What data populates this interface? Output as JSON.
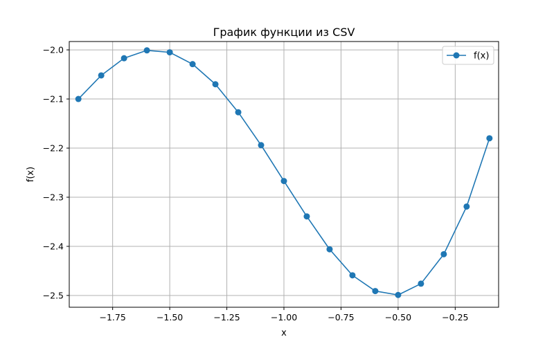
{
  "chart_data": {
    "type": "line",
    "title": "График функции из CSV",
    "xlabel": "x",
    "ylabel": "f(x)",
    "xlim": [
      -1.94,
      -0.06
    ],
    "ylim": [
      -2.524,
      -1.983
    ],
    "grid": true,
    "legend_position": "top-right",
    "x_ticks": [
      -1.75,
      -1.5,
      -1.25,
      -1.0,
      -0.75,
      -0.5,
      -0.25
    ],
    "x_tick_labels": [
      "−1.75",
      "−1.50",
      "−1.25",
      "−1.00",
      "−0.75",
      "−0.50",
      "−0.25"
    ],
    "y_ticks": [
      -2.0,
      -2.1,
      -2.2,
      -2.3,
      -2.4,
      -2.5
    ],
    "y_tick_labels": [
      "−2.0",
      "−2.1",
      "−2.2",
      "−2.3",
      "−2.4",
      "−2.5"
    ],
    "colors": {
      "series": "#1f77b4",
      "grid": "#b0b0b0",
      "axes": "#000000"
    },
    "series": [
      {
        "name": "f(x)",
        "marker": "circle",
        "x": [
          -1.9,
          -1.8,
          -1.7,
          -1.6,
          -1.5,
          -1.4,
          -1.3,
          -1.2,
          -1.1,
          -1.0,
          -0.9,
          -0.8,
          -0.7,
          -0.6,
          -0.5,
          -0.4,
          -0.3,
          -0.2,
          -0.1
        ],
        "y": [
          -2.1,
          -2.052,
          -2.017,
          -2.001,
          -2.005,
          -2.029,
          -2.07,
          -2.127,
          -2.194,
          -2.267,
          -2.339,
          -2.406,
          -2.459,
          -2.491,
          -2.499,
          -2.476,
          -2.416,
          -2.319,
          -2.18
        ]
      }
    ]
  }
}
